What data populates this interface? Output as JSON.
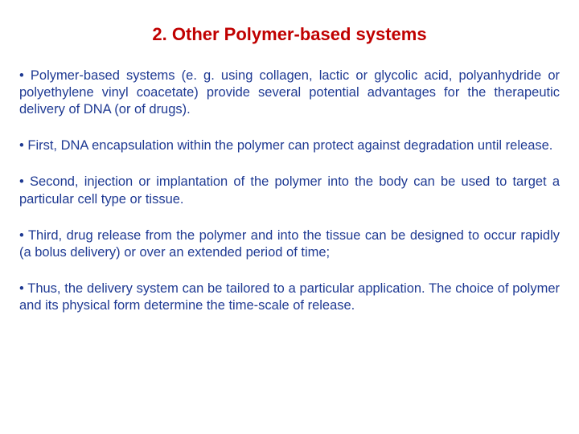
{
  "title": {
    "text": "2. Other Polymer-based systems",
    "color": "#c00000",
    "fontsize": 22,
    "fontweight": "bold"
  },
  "body": {
    "color": "#1f3a93",
    "fontsize": 16.5,
    "bullet_glyph": "• ",
    "paragraphs": [
      "Polymer-based systems (e. g. using collagen, lactic or glycolic acid, polyanhydride or polyethylene vinyl coacetate) provide several potential advantages for the therapeutic delivery of DNA (or of drugs).",
      "First, DNA encapsulation within the polymer can protect against degradation until release.",
      "Second, injection or implantation of the polymer into the body can be used to target a particular cell type or tissue.",
      "Third, drug release from the polymer and into the tissue can be designed to occur rapidly (a bolus delivery) or over an extended period of time;",
      "Thus, the delivery system can be tailored to a particular application. The choice of polymer and its physical form determine the time-scale of release."
    ]
  },
  "background_color": "#ffffff"
}
